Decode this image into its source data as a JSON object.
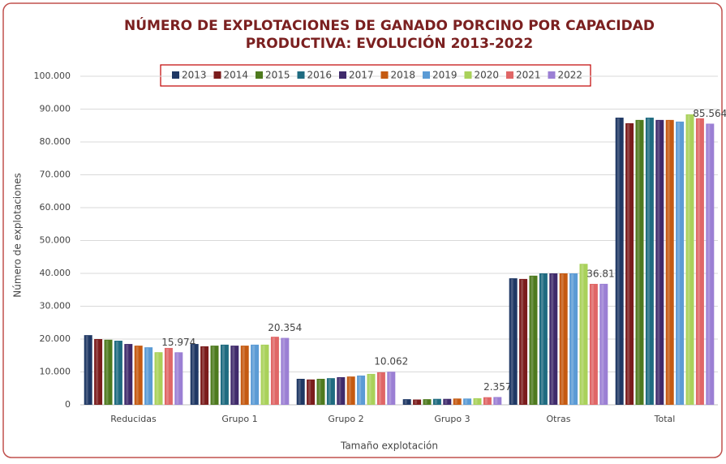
{
  "chart_data": {
    "type": "bar",
    "title": [
      "NÚMERO DE EXPLOTACIONES DE GANADO PORCINO POR CAPACIDAD",
      "PRODUCTIVA: EVOLUCIÓN 2013-2022"
    ],
    "x_label": "Tamaño explotación",
    "y_label": "Número de explotaciones",
    "categories": [
      "Reducidas",
      "Grupo 1",
      "Grupo 2",
      "Grupo 3",
      "Otras",
      "Total"
    ],
    "series": [
      {
        "name": "2013",
        "color": "#1f3864",
        "values": [
          21200,
          18500,
          7900,
          1700,
          38500,
          87400
        ]
      },
      {
        "name": "2014",
        "color": "#7b1c1c",
        "values": [
          20000,
          17800,
          7700,
          1600,
          38300,
          85700
        ]
      },
      {
        "name": "2015",
        "color": "#4e7a1e",
        "values": [
          19800,
          18000,
          7900,
          1700,
          39300,
          86700
        ]
      },
      {
        "name": "2016",
        "color": "#1f6b80",
        "values": [
          19500,
          18300,
          8100,
          1800,
          40000,
          87400
        ]
      },
      {
        "name": "2017",
        "color": "#3f2a6b",
        "values": [
          18500,
          18000,
          8400,
          1800,
          40000,
          86700
        ]
      },
      {
        "name": "2018",
        "color": "#c55a11",
        "values": [
          18000,
          18000,
          8600,
          1900,
          40000,
          86700
        ]
      },
      {
        "name": "2019",
        "color": "#5b9bd5",
        "values": [
          17500,
          18300,
          8900,
          1900,
          40000,
          86200
        ]
      },
      {
        "name": "2020",
        "color": "#a9d15a",
        "values": [
          16000,
          18300,
          9400,
          2000,
          42900,
          88400
        ]
      },
      {
        "name": "2021",
        "color": "#e06666",
        "values": [
          17300,
          20700,
          9900,
          2300,
          36800,
          87200
        ]
      },
      {
        "name": "2022",
        "color": "#9b7fd4",
        "values": [
          15974,
          20354,
          10062,
          2357,
          36817,
          85564
        ],
        "value_labels": [
          "15.974",
          "20.354",
          "10.062",
          "2.357",
          "36.817",
          "85.564"
        ]
      }
    ],
    "ylim": [
      0,
      100000
    ],
    "yticks": [
      0,
      {
        "value": 10000,
        "label": "10.000"
      },
      {
        "value": 20000,
        "label": "20.000"
      },
      {
        "value": 30000,
        "label": "30.000"
      },
      {
        "value": 40000,
        "label": "40.000"
      },
      {
        "value": 50000,
        "label": "50.000"
      },
      {
        "value": 60000,
        "label": "60.000"
      },
      {
        "value": 70000,
        "label": "70.000"
      },
      {
        "value": 80000,
        "label": "80.000"
      },
      {
        "value": 90000,
        "label": "90.000"
      },
      {
        "value": 100000,
        "label": "100.000"
      }
    ],
    "grid": true,
    "legend": "top"
  }
}
